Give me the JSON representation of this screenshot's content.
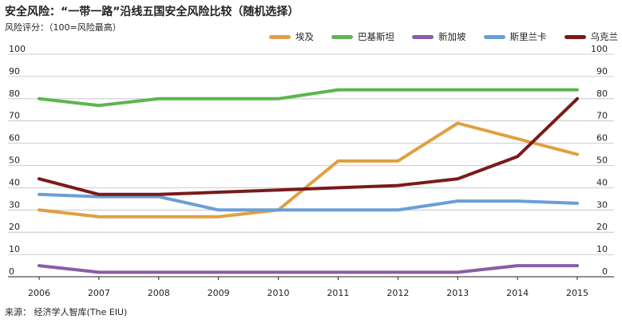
{
  "header": {
    "title": "安全风险：“一带一路”沿线五国安全风险比较（随机选择）",
    "subtitle": "风险评分：（100=风险最高）"
  },
  "footer": {
    "source": "来源： 经济学人智库(The EIU)"
  },
  "chart_data": {
    "type": "line",
    "title": "安全风险：“一带一路”沿线五国安全风险比较（随机选择）",
    "ylabel": "风险评分：（100=风险最高）",
    "xlabel": "",
    "x": [
      2006,
      2007,
      2008,
      2009,
      2010,
      2011,
      2012,
      2013,
      2014,
      2015
    ],
    "ylim": [
      0,
      100
    ],
    "yticks": [
      0,
      10,
      20,
      30,
      40,
      50,
      60,
      70,
      80,
      90,
      100
    ],
    "grid": true,
    "y_axis_both_sides": true,
    "legend_position": "top-right",
    "series": [
      {
        "name": "埃及",
        "color": "#e0a040",
        "values": [
          30,
          27,
          27,
          27,
          30,
          52,
          52,
          69,
          62,
          55
        ]
      },
      {
        "name": "巴基斯坦",
        "color": "#5db54e",
        "values": [
          80,
          77,
          80,
          80,
          80,
          84,
          84,
          84,
          84,
          84
        ]
      },
      {
        "name": "新加坡",
        "color": "#8a5ca6",
        "values": [
          5,
          2,
          2,
          2,
          2,
          2,
          2,
          2,
          5,
          5
        ]
      },
      {
        "name": "斯里兰卡",
        "color": "#6a9fd4",
        "values": [
          37,
          36,
          36,
          30,
          30,
          30,
          30,
          34,
          34,
          33
        ]
      },
      {
        "name": "乌克兰",
        "color": "#7a1a1a",
        "values": [
          44,
          37,
          37,
          38,
          39,
          40,
          41,
          44,
          54,
          80
        ]
      }
    ]
  }
}
